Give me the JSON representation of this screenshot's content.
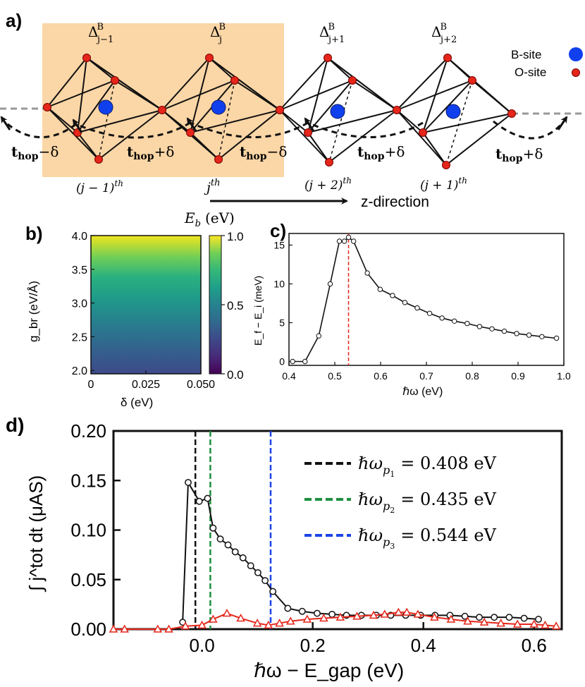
{
  "panels": {
    "a": {
      "label": "a)",
      "delta_labels": [
        "Δ",
        "Δ",
        "Δ",
        "Δ"
      ],
      "delta_subs": [
        "j−1",
        "j",
        "j+1",
        "j+2"
      ],
      "delta_sup": "B",
      "site_labels": [
        "(j − 1)",
        "j",
        "(j + 2)",
        "(j + 1)"
      ],
      "site_sup": "th",
      "hop_labels": [
        "t",
        "t",
        "t",
        "t",
        "t"
      ],
      "hop_sub": "hop",
      "hop_signs": [
        "−δ",
        "+δ",
        "−δ",
        "+δ",
        "+δ"
      ],
      "legend": [
        "B-site",
        "O-site"
      ],
      "direction": "z-direction",
      "colors": {
        "highlight": "#fbd6a6",
        "bsite": "#1040ee",
        "osite": "#e5261a"
      }
    },
    "b": {
      "label": "b)",
      "colorbar_title": "E",
      "colorbar_title_sub": "b",
      "colorbar_title_unit": "(eV)"
    },
    "c": {
      "label": "c)"
    },
    "d": {
      "label": "d)",
      "legend": [
        {
          "text": "ℏω",
          "sub": "p",
          "subsub": "1",
          "value": "= 0.408 eV",
          "color": "#111111"
        },
        {
          "text": "ℏω",
          "sub": "p",
          "subsub": "2",
          "value": "= 0.435 eV",
          "color": "#1d8f3f"
        },
        {
          "text": "ℏω",
          "sub": "p",
          "subsub": "3",
          "value": "= 0.544 eV",
          "color": "#1b44e8"
        }
      ]
    }
  },
  "chart_data": [
    {
      "panel": "b",
      "type": "heatmap",
      "xlabel": "δ (eV)",
      "ylabel": "g_br (eV/Å)",
      "xlim": [
        0,
        0.05
      ],
      "ylim": [
        1.95,
        4.0
      ],
      "xticks": [
        "0",
        "0.025",
        "0.050"
      ],
      "yticks": [
        "2.0",
        "2.5",
        "3.0",
        "3.5",
        "4.0"
      ],
      "colorbar": {
        "range": [
          0,
          1.0
        ],
        "ticks": [
          "0.0",
          "0.5",
          "1.0"
        ],
        "colormap": "viridis"
      },
      "z_at_y_low": 0.18,
      "z_at_y_high": 1.0
    },
    {
      "panel": "c",
      "type": "line",
      "xlabel": "ℏω (eV)",
      "ylabel": "E_f − E_i (meV)",
      "xlim": [
        0.4,
        1.0
      ],
      "ylim": [
        -0.5,
        16.5
      ],
      "xticks": [
        "0.4",
        "0.5",
        "0.6",
        "0.7",
        "0.8",
        "0.9",
        "1.0"
      ],
      "yticks": [
        "0",
        "5",
        "10",
        "15"
      ],
      "x": [
        0.408,
        0.435,
        0.465,
        0.49,
        0.51,
        0.521,
        0.53,
        0.541,
        0.571,
        0.599,
        0.626,
        0.653,
        0.68,
        0.707,
        0.734,
        0.761,
        0.789,
        0.816,
        0.843,
        0.87,
        0.897,
        0.924,
        0.952,
        0.984
      ],
      "y": [
        0.0,
        0.0,
        3.3,
        10.0,
        15.5,
        15.5,
        16.0,
        15.5,
        11.4,
        9.3,
        8.5,
        7.6,
        6.9,
        6.2,
        5.6,
        5.2,
        4.9,
        4.5,
        4.2,
        3.9,
        3.6,
        3.4,
        3.2,
        3.0
      ],
      "vline": 0.53,
      "line_color": "#111111",
      "vline_color": "#e5261a"
    },
    {
      "panel": "d",
      "type": "line",
      "xlabel": "ℏω − E_gap (eV)",
      "ylabel": "∫ j^tot dt (μAS)",
      "xlim": [
        -0.16,
        0.65
      ],
      "ylim": [
        0,
        0.2
      ],
      "xticks": [
        "0.0",
        "0.2",
        "0.4",
        "0.6"
      ],
      "yticks": [
        "0.00",
        "0.05",
        "0.10",
        "0.15",
        "0.20"
      ],
      "vlines": [
        {
          "x": -0.012,
          "color": "#111111"
        },
        {
          "x": 0.015,
          "color": "#1d8f3f"
        },
        {
          "x": 0.124,
          "color": "#1b44e8"
        }
      ],
      "series": [
        {
          "color": "#111111",
          "marker": "circle",
          "x": [
            -0.035,
            -0.025,
            -0.005,
            0.01,
            0.02,
            0.033,
            0.047,
            0.06,
            0.074,
            0.088,
            0.101,
            0.114,
            0.128,
            0.155,
            0.181,
            0.208,
            0.235,
            0.261,
            0.288,
            0.315,
            0.341,
            0.368,
            0.395,
            0.421,
            0.448,
            0.475,
            0.501,
            0.528,
            0.555,
            0.582,
            0.608
          ],
          "y": [
            0.007,
            0.148,
            0.129,
            0.132,
            0.102,
            0.091,
            0.085,
            0.078,
            0.072,
            0.064,
            0.057,
            0.049,
            0.038,
            0.021,
            0.018,
            0.016,
            0.015,
            0.014,
            0.014,
            0.014,
            0.014,
            0.014,
            0.014,
            0.014,
            0.014,
            0.013,
            0.012,
            0.012,
            0.012,
            0.011,
            0.01
          ]
        },
        {
          "color": "#e5261a",
          "marker": "triangle",
          "x": [
            -0.16,
            -0.14,
            -0.08,
            -0.06,
            -0.03,
            0.0,
            0.02,
            0.045,
            0.07,
            0.1,
            0.12,
            0.14,
            0.16,
            0.19,
            0.22,
            0.25,
            0.28,
            0.31,
            0.33,
            0.355,
            0.37,
            0.39,
            0.42,
            0.45,
            0.48,
            0.51,
            0.54,
            0.57,
            0.6,
            0.62,
            0.64
          ],
          "y": [
            0.0,
            0.0,
            0.0,
            0.0,
            0.003,
            0.004,
            0.01,
            0.016,
            0.011,
            0.006,
            0.004,
            0.006,
            0.008,
            0.01,
            0.011,
            0.012,
            0.013,
            0.014,
            0.015,
            0.017,
            0.017,
            0.015,
            0.012,
            0.01,
            0.008,
            0.007,
            0.006,
            0.005,
            0.005,
            0.004,
            0.003
          ]
        }
      ]
    }
  ]
}
